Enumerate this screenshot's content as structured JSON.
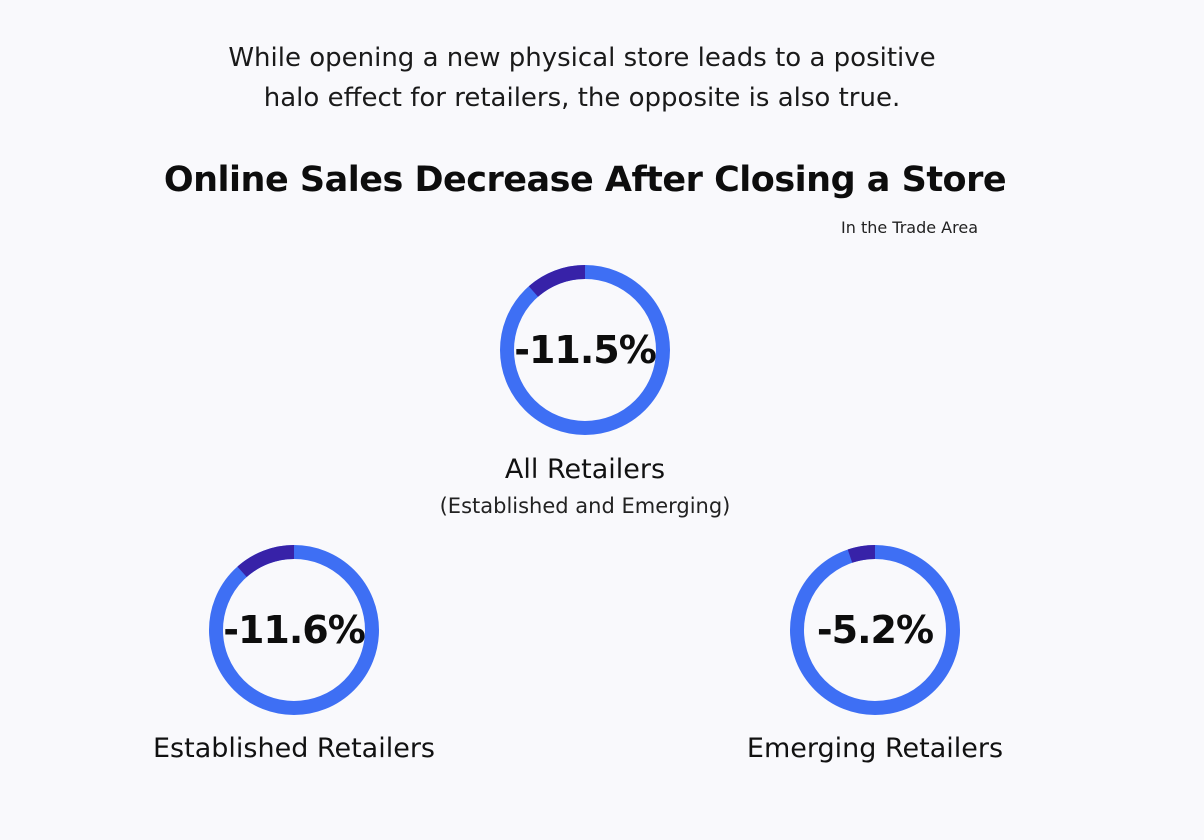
{
  "intro": {
    "line1": "While opening a new physical store leads to a positive",
    "line2": "halo effect for retailers, the opposite is also true."
  },
  "colors": {
    "ring": "#3e6ff4",
    "segment": "#3722a8",
    "background": "#f9f9fc"
  },
  "chart_data": {
    "type": "pie",
    "title": "Online Sales Decrease After Closing a Store",
    "subtitle": "In the Trade Area",
    "items": [
      {
        "label": "All Retailers",
        "sublabel": "(Established and Emerging)",
        "value": -11.5,
        "display": "-11.5%"
      },
      {
        "label": "Established Retailers",
        "sublabel": "",
        "value": -11.6,
        "display": "-11.6%"
      },
      {
        "label": "Emerging Retailers",
        "sublabel": "",
        "value": -5.2,
        "display": "-5.2%"
      }
    ]
  }
}
